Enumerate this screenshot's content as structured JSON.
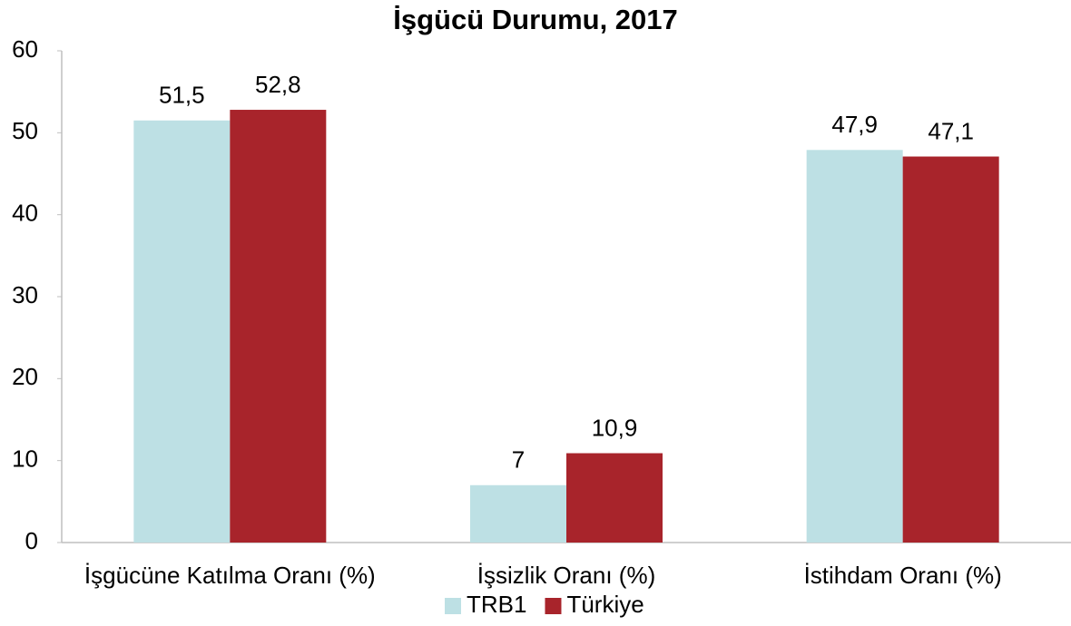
{
  "chart_data": {
    "type": "bar",
    "title": "İşgücü Durumu, 2017",
    "categories": [
      "İşgücüne Katılma Oranı (%)",
      "İşsizlik Oranı (%)",
      "İstihdam Oranı (%)"
    ],
    "series": [
      {
        "name": "TRB1",
        "color": "#bde0e4",
        "values": [
          51.5,
          7,
          47.9
        ],
        "value_labels": [
          "51,5",
          "7",
          "47,9"
        ]
      },
      {
        "name": "Türkiye",
        "color": "#a8242b",
        "values": [
          52.8,
          10.9,
          47.1
        ],
        "value_labels": [
          "52,8",
          "10,9",
          "47,1"
        ]
      }
    ],
    "ylim": [
      0,
      60
    ],
    "yticks": [
      0,
      10,
      20,
      30,
      40,
      50,
      60
    ],
    "grid": false,
    "legend": "bottom"
  }
}
